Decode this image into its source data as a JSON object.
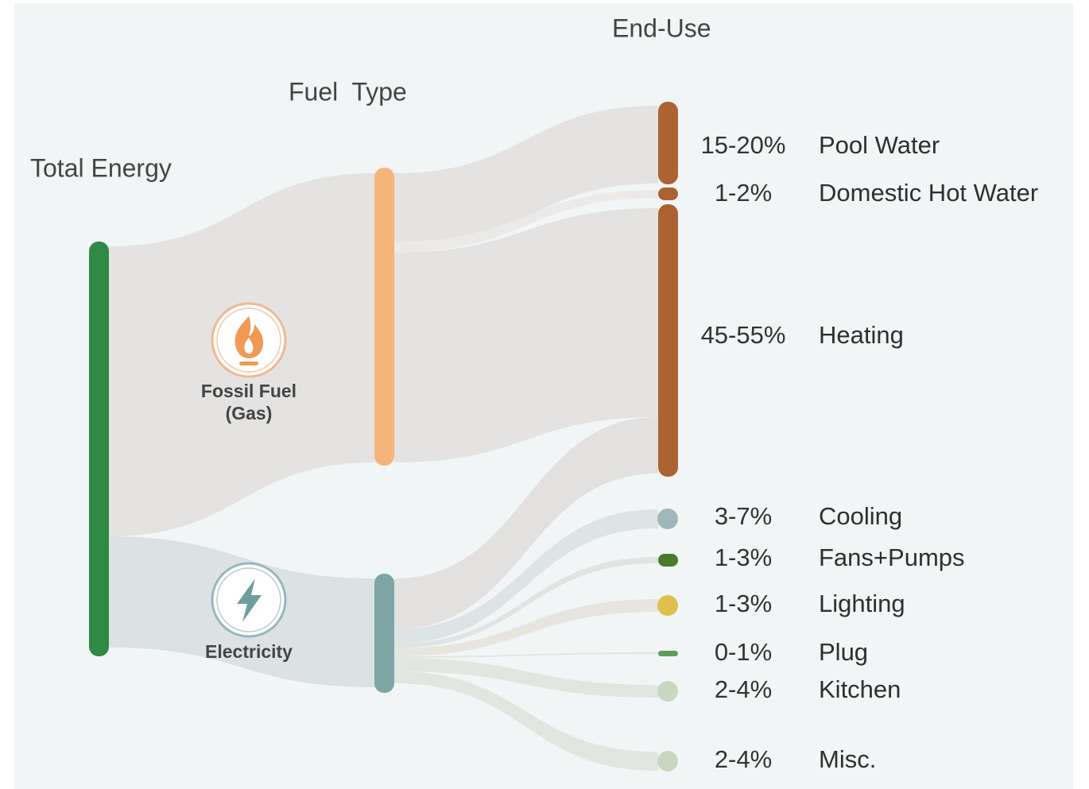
{
  "columns": {
    "total": "Total Energy",
    "fuel": "Fuel  Type",
    "end_use": "End-Use"
  },
  "sources": [
    {
      "lines": [
        "Fossil Fuel",
        "(Gas)"
      ]
    },
    {
      "lines": [
        "Electricity"
      ]
    }
  ],
  "end_uses": [
    {
      "share": "15-20%",
      "label": "Pool Water"
    },
    {
      "share": "1-2%",
      "label": "Domestic Hot Water"
    },
    {
      "share": "45-55%",
      "label": "Heating"
    },
    {
      "share": "3-7%",
      "label": "Cooling"
    },
    {
      "share": "1-3%",
      "label": "Fans+Pumps"
    },
    {
      "share": "1-3%",
      "label": "Lighting"
    },
    {
      "share": "0-1%",
      "label": "Plug"
    },
    {
      "share": "2-4%",
      "label": "Kitchen"
    },
    {
      "share": "2-4%",
      "label": "Misc."
    }
  ]
}
